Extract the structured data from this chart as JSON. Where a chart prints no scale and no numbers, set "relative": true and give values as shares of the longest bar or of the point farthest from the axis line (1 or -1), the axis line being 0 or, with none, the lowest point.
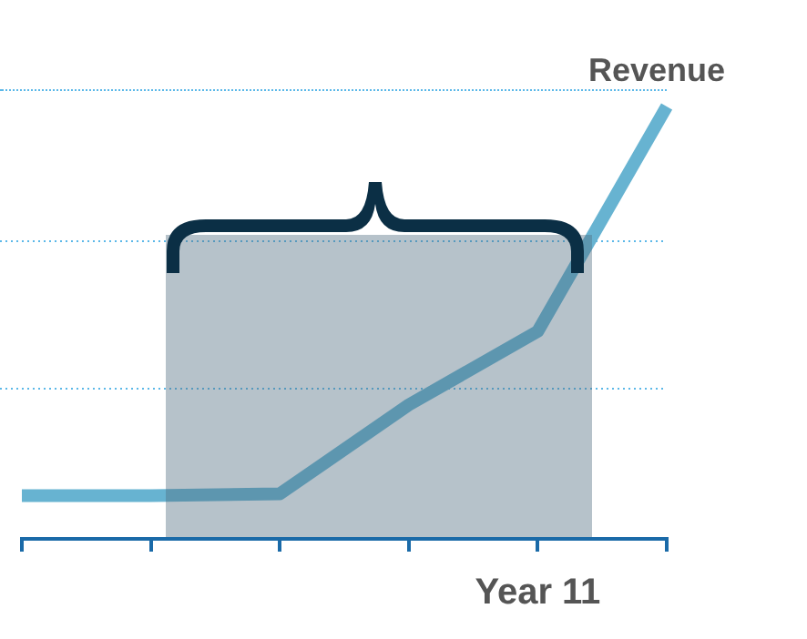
{
  "chart_data": {
    "type": "line",
    "relative": true,
    "categories": [
      null,
      null,
      null,
      null,
      null,
      null
    ],
    "annotations": [
      "Year 11"
    ],
    "series": [
      {
        "name": "Revenue",
        "color": "#67b3d1",
        "values": [
          0.1,
          0.1,
          0.104,
          0.31,
          0.48,
          1
        ]
      }
    ],
    "ref_lines": [
      {
        "axis": "y",
        "value": 0.35,
        "color": "#5bb8e8",
        "line_style": "dotted"
      },
      {
        "axis": "y",
        "value": 0.69,
        "color": "#5bb8e8",
        "line_style": "dotted"
      }
    ],
    "legend": false,
    "marker": "none",
    "line_style": "solid"
  }
}
